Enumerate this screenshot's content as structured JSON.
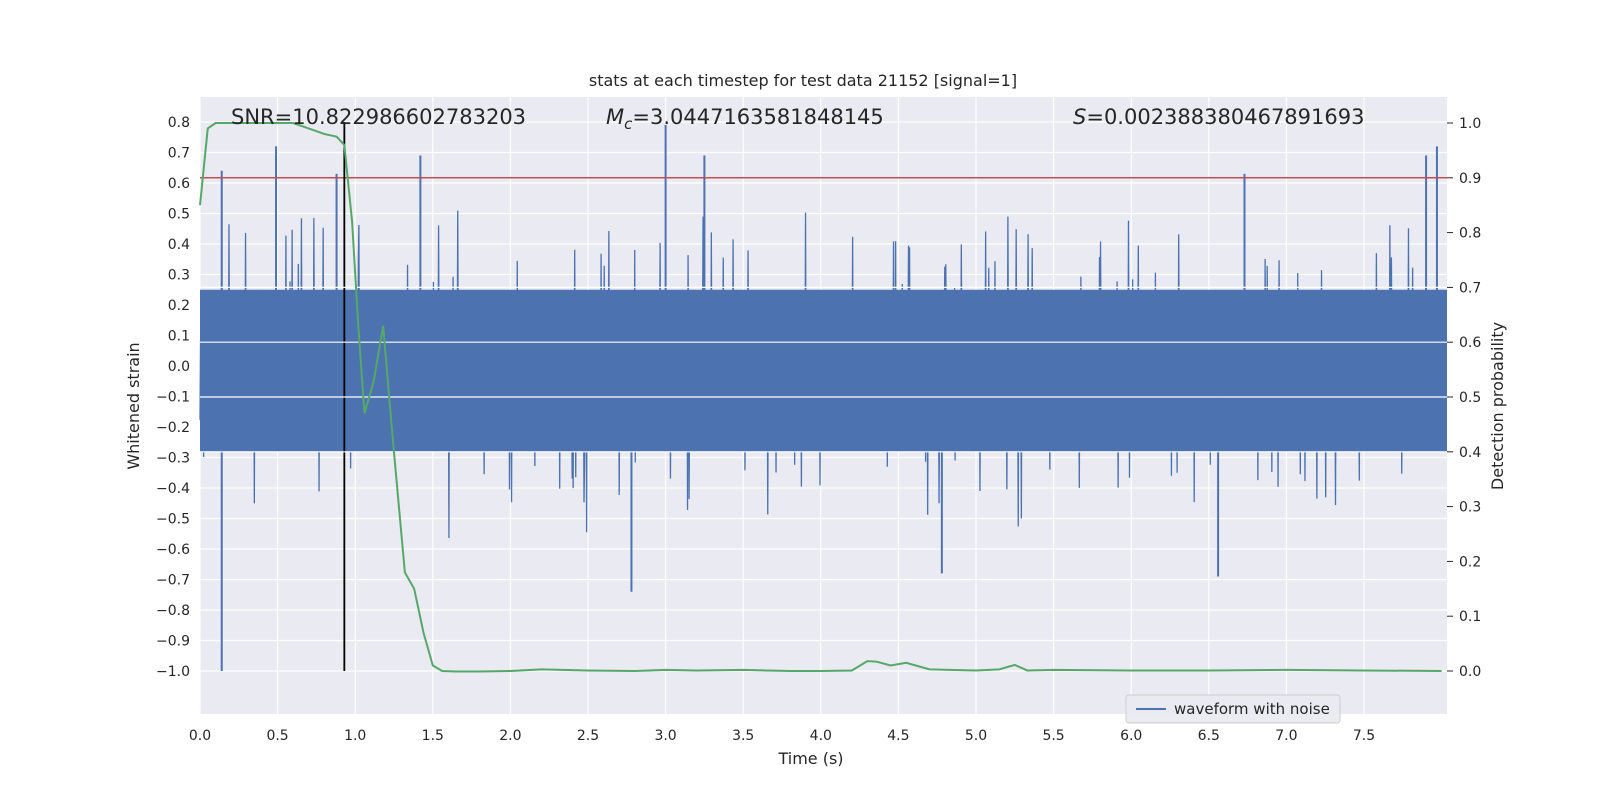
{
  "chart_data": {
    "type": "line",
    "title": "stats at each timestep for test data 21152 [signal=1]",
    "xlabel": "Time (s)",
    "ylabel_left": "Whitened strain",
    "ylabel_right": "Detection probability",
    "xlim": [
      0.0,
      8.0
    ],
    "ylim_left": [
      -1.08,
      0.88
    ],
    "ylim_right": [
      -0.05,
      1.05
    ],
    "x_ticks": [
      "0.0",
      "0.5",
      "1.0",
      "1.5",
      "2.0",
      "2.5",
      "3.0",
      "3.5",
      "4.0",
      "4.5",
      "5.0",
      "5.5",
      "6.0",
      "6.5",
      "7.0",
      "7.5"
    ],
    "x_tick_values": [
      0.0,
      0.5,
      1.0,
      1.5,
      2.0,
      2.5,
      3.0,
      3.5,
      4.0,
      4.5,
      5.0,
      5.5,
      6.0,
      6.5,
      7.0,
      7.5
    ],
    "y_left_ticks": [
      "0.8",
      "0.7",
      "0.6",
      "0.5",
      "0.4",
      "0.3",
      "0.2",
      "0.1",
      "0.0",
      "−0.1",
      "−0.2",
      "−0.3",
      "−0.4",
      "−0.5",
      "−0.6",
      "−0.7",
      "−0.8",
      "−0.9",
      "−1.0"
    ],
    "y_left_tick_values": [
      0.8,
      0.7,
      0.6,
      0.5,
      0.4,
      0.3,
      0.2,
      0.1,
      0.0,
      -0.1,
      -0.2,
      -0.3,
      -0.4,
      -0.5,
      -0.6,
      -0.7,
      -0.8,
      -0.9,
      -1.0
    ],
    "y_right_ticks": [
      "1.0",
      "0.9",
      "0.8",
      "0.7",
      "0.6",
      "0.5",
      "0.4",
      "0.3",
      "0.2",
      "0.1",
      "0.0"
    ],
    "y_right_tick_values": [
      1.0,
      0.9,
      0.8,
      0.7,
      0.6,
      0.5,
      0.4,
      0.3,
      0.2,
      0.1,
      0.0
    ],
    "annotations": {
      "snr": "SNR=10.822986602783203",
      "mc_symbol": "M",
      "mc_sub": "c",
      "mc_value": "=3.0447163581848145",
      "s_symbol": "S",
      "s_value": "=0.002388380467891693"
    },
    "threshold_line": {
      "axis": "right",
      "value": 0.9,
      "color": "#c44e52"
    },
    "event_time_line": {
      "x": 0.93,
      "y_range": [
        -1.0,
        0.8
      ],
      "color": "#000000"
    },
    "series": [
      {
        "name": "waveform with noise",
        "axis": "left",
        "color": "#4c72b0",
        "style": "noisy-strain",
        "x_range": [
          0.0,
          8.0
        ],
        "core_band": [
          -0.28,
          0.25
        ],
        "notable_spikes": [
          {
            "x": 0.14,
            "y": -1.0
          },
          {
            "x": 0.14,
            "y": 0.64
          },
          {
            "x": 0.49,
            "y": 0.72
          },
          {
            "x": 0.88,
            "y": 0.63
          },
          {
            "x": 1.42,
            "y": 0.69
          },
          {
            "x": 2.78,
            "y": -0.74
          },
          {
            "x": 3.0,
            "y": 0.79
          },
          {
            "x": 3.25,
            "y": 0.69
          },
          {
            "x": 4.78,
            "y": -0.68
          },
          {
            "x": 6.56,
            "y": -0.69
          },
          {
            "x": 6.73,
            "y": 0.63
          },
          {
            "x": 7.9,
            "y": 0.69
          },
          {
            "x": 7.97,
            "y": 0.72
          }
        ]
      },
      {
        "name": "detection probability",
        "axis": "right",
        "color": "#55a868",
        "x": [
          0.0,
          0.05,
          0.1,
          0.2,
          0.3,
          0.4,
          0.5,
          0.6,
          0.7,
          0.8,
          0.88,
          0.93,
          0.98,
          1.02,
          1.06,
          1.12,
          1.18,
          1.24,
          1.32,
          1.38,
          1.44,
          1.5,
          1.56,
          1.65,
          1.8,
          2.0,
          2.2,
          2.5,
          2.8,
          3.0,
          3.2,
          3.5,
          3.8,
          4.0,
          4.2,
          4.3,
          4.36,
          4.45,
          4.55,
          4.7,
          5.0,
          5.15,
          5.25,
          5.33,
          5.5,
          6.0,
          6.5,
          7.0,
          7.5,
          8.0
        ],
        "y": [
          0.85,
          0.99,
          1.0,
          1.0,
          1.0,
          1.0,
          1.0,
          1.0,
          0.99,
          0.98,
          0.975,
          0.96,
          0.82,
          0.63,
          0.47,
          0.53,
          0.63,
          0.43,
          0.18,
          0.15,
          0.07,
          0.01,
          0.0,
          -0.001,
          -0.001,
          0.0,
          0.003,
          0.001,
          0.0,
          0.002,
          0.001,
          0.002,
          0.0,
          0.0,
          0.001,
          0.018,
          0.017,
          0.01,
          0.015,
          0.003,
          0.001,
          0.003,
          0.011,
          0.001,
          0.002,
          0.001,
          0.001,
          0.002,
          0.001,
          0.0
        ]
      }
    ],
    "legend": {
      "placement": "lower-right",
      "entries": [
        "waveform with noise"
      ]
    },
    "grid": true,
    "background_color": "#eaeaf2"
  }
}
